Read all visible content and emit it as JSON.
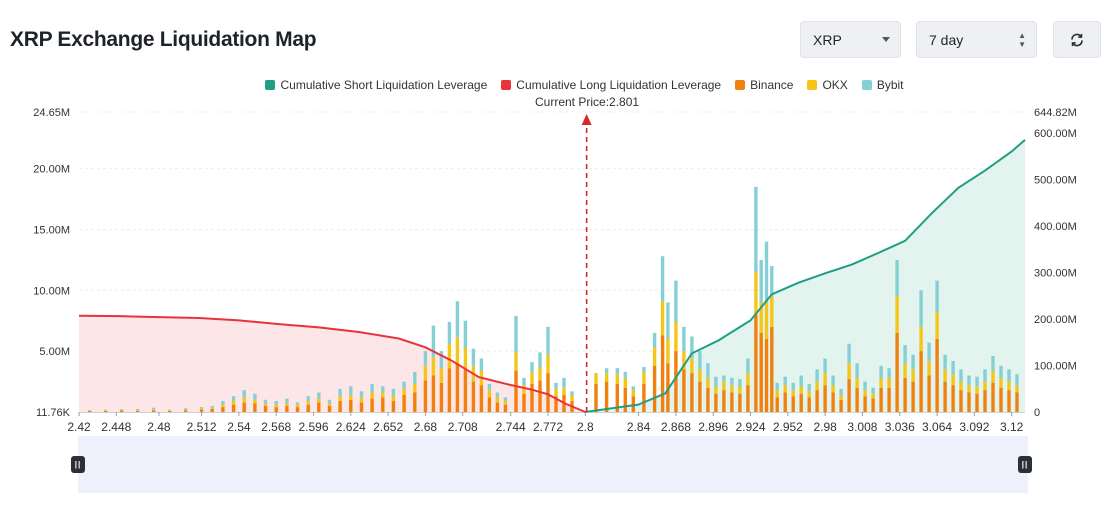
{
  "title": "XRP Exchange Liquidation Map",
  "controls": {
    "asset": "XRP",
    "period": "7 day",
    "refresh_icon": "refresh-icon"
  },
  "legend": [
    {
      "label": "Cumulative Short Liquidation Leverage",
      "color": "#1f9d85"
    },
    {
      "label": "Cumulative Long Liquidation Leverage",
      "color": "#e8323c"
    },
    {
      "label": "Binance",
      "color": "#f0810f"
    },
    {
      "label": "OKX",
      "color": "#f5c518"
    },
    {
      "label": "Bybit",
      "color": "#84d0d4"
    }
  ],
  "current_price_label": "Current Price:2.801",
  "chart_data": {
    "type": "bar",
    "current_price": 2.801,
    "x_ticks": [
      "2.42",
      "2.448",
      "2.48",
      "2.512",
      "2.54",
      "2.568",
      "2.596",
      "2.624",
      "2.652",
      "2.68",
      "2.708",
      "2.744",
      "2.772",
      "2.8",
      "2.84",
      "2.868",
      "2.896",
      "2.924",
      "2.952",
      "2.98",
      "3.008",
      "3.036",
      "3.064",
      "3.092",
      "3.12"
    ],
    "y_left_ticks": [
      "24.65M",
      "20.00M",
      "15.00M",
      "10.00M",
      "5.00M",
      "11.76K"
    ],
    "y_right_ticks": [
      "644.82M",
      "600.00M",
      "500.00M",
      "400.00M",
      "300.00M",
      "200.00M",
      "100.00M",
      "0"
    ],
    "ylim_left": [
      0,
      24650000
    ],
    "ylim_right": [
      0,
      644820000
    ],
    "xlim": [
      2.42,
      3.13
    ],
    "colors": {
      "binance": "#f0810f",
      "okx": "#f5c518",
      "bybit": "#84d0d4",
      "short_line": "#1f9d85",
      "short_fill": "#e3f4ef",
      "long_line": "#e8323c",
      "long_fill": "#fde6e8",
      "current_price": "#d62a2a"
    },
    "long_cumulative": {
      "x": [
        2.42,
        2.45,
        2.48,
        2.51,
        2.54,
        2.57,
        2.6,
        2.63,
        2.66,
        2.68,
        2.7,
        2.72,
        2.744,
        2.76,
        2.772,
        2.785,
        2.8
      ],
      "y": [
        207000000,
        206000000,
        204000000,
        202000000,
        197000000,
        189000000,
        182000000,
        172000000,
        158000000,
        139000000,
        110000000,
        75000000,
        58000000,
        48000000,
        38000000,
        18000000,
        0
      ]
    },
    "short_cumulative": {
      "x": [
        2.8,
        2.84,
        2.86,
        2.88,
        2.9,
        2.924,
        2.94,
        2.96,
        2.98,
        3.0,
        3.02,
        3.04,
        3.06,
        3.08,
        3.1,
        3.12,
        3.13
      ],
      "y": [
        0,
        16000000,
        40000000,
        126000000,
        154000000,
        197000000,
        253000000,
        278000000,
        298000000,
        317000000,
        342000000,
        368000000,
        427000000,
        482000000,
        519000000,
        560000000,
        585000000
      ]
    },
    "series": [
      {
        "name": "Binance"
      },
      {
        "name": "OKX"
      },
      {
        "name": "Bybit"
      }
    ],
    "bars": [
      {
        "x": 2.428,
        "binance": 0.08,
        "okx": 0.04,
        "bybit": 0.03
      },
      {
        "x": 2.44,
        "binance": 0.1,
        "okx": 0.05,
        "bybit": 0.05
      },
      {
        "x": 2.452,
        "binance": 0.12,
        "okx": 0.06,
        "bybit": 0.05
      },
      {
        "x": 2.464,
        "binance": 0.1,
        "okx": 0.05,
        "bybit": 0.1
      },
      {
        "x": 2.476,
        "binance": 0.15,
        "okx": 0.05,
        "bybit": 0.15
      },
      {
        "x": 2.488,
        "binance": 0.1,
        "okx": 0.05,
        "bybit": 0.05
      },
      {
        "x": 2.5,
        "binance": 0.15,
        "okx": 0.05,
        "bybit": 0.1
      },
      {
        "x": 2.512,
        "binance": 0.2,
        "okx": 0.1,
        "bybit": 0.1
      },
      {
        "x": 2.52,
        "binance": 0.25,
        "okx": 0.1,
        "bybit": 0.15
      },
      {
        "x": 2.528,
        "binance": 0.4,
        "okx": 0.2,
        "bybit": 0.3
      },
      {
        "x": 2.536,
        "binance": 0.6,
        "okx": 0.3,
        "bybit": 0.4
      },
      {
        "x": 2.544,
        "binance": 0.8,
        "okx": 0.4,
        "bybit": 0.6
      },
      {
        "x": 2.552,
        "binance": 0.7,
        "okx": 0.3,
        "bybit": 0.5
      },
      {
        "x": 2.56,
        "binance": 0.5,
        "okx": 0.2,
        "bybit": 0.3
      },
      {
        "x": 2.568,
        "binance": 0.4,
        "okx": 0.2,
        "bybit": 0.3
      },
      {
        "x": 2.576,
        "binance": 0.5,
        "okx": 0.2,
        "bybit": 0.4
      },
      {
        "x": 2.584,
        "binance": 0.4,
        "okx": 0.2,
        "bybit": 0.2
      },
      {
        "x": 2.592,
        "binance": 0.6,
        "okx": 0.3,
        "bybit": 0.4
      },
      {
        "x": 2.6,
        "binance": 0.8,
        "okx": 0.3,
        "bybit": 0.5
      },
      {
        "x": 2.608,
        "binance": 0.5,
        "okx": 0.2,
        "bybit": 0.3
      },
      {
        "x": 2.616,
        "binance": 0.9,
        "okx": 0.4,
        "bybit": 0.6
      },
      {
        "x": 2.624,
        "binance": 1.0,
        "okx": 0.4,
        "bybit": 0.7
      },
      {
        "x": 2.632,
        "binance": 0.8,
        "okx": 0.4,
        "bybit": 0.5
      },
      {
        "x": 2.64,
        "binance": 1.1,
        "okx": 0.5,
        "bybit": 0.7
      },
      {
        "x": 2.648,
        "binance": 1.2,
        "okx": 0.4,
        "bybit": 0.5
      },
      {
        "x": 2.656,
        "binance": 0.9,
        "okx": 0.4,
        "bybit": 0.6
      },
      {
        "x": 2.664,
        "binance": 1.4,
        "okx": 0.5,
        "bybit": 0.6
      },
      {
        "x": 2.672,
        "binance": 1.6,
        "okx": 0.7,
        "bybit": 1.0
      },
      {
        "x": 2.68,
        "binance": 2.6,
        "okx": 1.2,
        "bybit": 1.2
      },
      {
        "x": 2.686,
        "binance": 3.0,
        "okx": 1.5,
        "bybit": 2.6
      },
      {
        "x": 2.692,
        "binance": 2.4,
        "okx": 1.2,
        "bybit": 1.4
      },
      {
        "x": 2.698,
        "binance": 3.6,
        "okx": 2.0,
        "bybit": 1.8
      },
      {
        "x": 2.704,
        "binance": 4.0,
        "okx": 2.1,
        "bybit": 3.0
      },
      {
        "x": 2.71,
        "binance": 3.5,
        "okx": 1.8,
        "bybit": 2.2
      },
      {
        "x": 2.716,
        "binance": 2.5,
        "okx": 1.3,
        "bybit": 1.4
      },
      {
        "x": 2.722,
        "binance": 2.2,
        "okx": 1.2,
        "bybit": 1.0
      },
      {
        "x": 2.728,
        "binance": 1.2,
        "okx": 0.6,
        "bybit": 0.5
      },
      {
        "x": 2.734,
        "binance": 0.8,
        "okx": 0.4,
        "bybit": 0.4
      },
      {
        "x": 2.74,
        "binance": 0.6,
        "okx": 0.3,
        "bybit": 0.3
      },
      {
        "x": 2.748,
        "binance": 3.4,
        "okx": 1.5,
        "bybit": 3.0
      },
      {
        "x": 2.754,
        "binance": 1.5,
        "okx": 0.7,
        "bybit": 0.6
      },
      {
        "x": 2.76,
        "binance": 2.3,
        "okx": 1.0,
        "bybit": 0.8
      },
      {
        "x": 2.766,
        "binance": 2.6,
        "okx": 1.1,
        "bybit": 1.2
      },
      {
        "x": 2.772,
        "binance": 3.2,
        "okx": 1.5,
        "bybit": 2.3
      },
      {
        "x": 2.778,
        "binance": 1.3,
        "okx": 0.6,
        "bybit": 0.5
      },
      {
        "x": 2.784,
        "binance": 1.4,
        "okx": 0.6,
        "bybit": 0.8
      },
      {
        "x": 2.79,
        "binance": 0.9,
        "okx": 0.5,
        "bybit": 0.3
      },
      {
        "x": 2.808,
        "binance": 2.3,
        "okx": 0.9,
        "bybit": 0.0
      },
      {
        "x": 2.816,
        "binance": 2.5,
        "okx": 0.7,
        "bybit": 0.4
      },
      {
        "x": 2.824,
        "binance": 2.3,
        "okx": 0.8,
        "bybit": 0.5
      },
      {
        "x": 2.83,
        "binance": 2.0,
        "okx": 0.8,
        "bybit": 0.5
      },
      {
        "x": 2.836,
        "binance": 1.3,
        "okx": 0.5,
        "bybit": 0.3
      },
      {
        "x": 2.844,
        "binance": 2.3,
        "okx": 1.0,
        "bybit": 0.4
      },
      {
        "x": 2.852,
        "binance": 3.8,
        "okx": 1.5,
        "bybit": 1.2
      },
      {
        "x": 2.858,
        "binance": 6.3,
        "okx": 2.8,
        "bybit": 3.7
      },
      {
        "x": 2.862,
        "binance": 4.0,
        "okx": 2.0,
        "bybit": 3.0
      },
      {
        "x": 2.868,
        "binance": 5.0,
        "okx": 2.4,
        "bybit": 3.4
      },
      {
        "x": 2.874,
        "binance": 3.5,
        "okx": 1.5,
        "bybit": 2.0
      },
      {
        "x": 2.88,
        "binance": 3.2,
        "okx": 1.2,
        "bybit": 1.8
      },
      {
        "x": 2.886,
        "binance": 2.5,
        "okx": 1.0,
        "bybit": 1.5
      },
      {
        "x": 2.892,
        "binance": 2.0,
        "okx": 0.8,
        "bybit": 1.2
      },
      {
        "x": 2.898,
        "binance": 1.5,
        "okx": 0.6,
        "bybit": 0.8
      },
      {
        "x": 2.904,
        "binance": 1.8,
        "okx": 0.7,
        "bybit": 0.5
      },
      {
        "x": 2.91,
        "binance": 1.6,
        "okx": 0.6,
        "bybit": 0.6
      },
      {
        "x": 2.916,
        "binance": 1.5,
        "okx": 0.6,
        "bybit": 0.6
      },
      {
        "x": 2.922,
        "binance": 2.2,
        "okx": 1.0,
        "bybit": 1.2
      },
      {
        "x": 2.928,
        "binance": 8.0,
        "okx": 3.5,
        "bybit": 7.0
      },
      {
        "x": 2.932,
        "binance": 6.5,
        "okx": 2.5,
        "bybit": 3.5
      },
      {
        "x": 2.936,
        "binance": 6.0,
        "okx": 3.0,
        "bybit": 5.0
      },
      {
        "x": 2.94,
        "binance": 7.0,
        "okx": 2.5,
        "bybit": 2.5
      },
      {
        "x": 2.944,
        "binance": 1.2,
        "okx": 0.6,
        "bybit": 0.6
      },
      {
        "x": 2.95,
        "binance": 1.6,
        "okx": 0.6,
        "bybit": 0.7
      },
      {
        "x": 2.956,
        "binance": 1.3,
        "okx": 0.5,
        "bybit": 0.6
      },
      {
        "x": 2.962,
        "binance": 1.5,
        "okx": 0.6,
        "bybit": 0.9
      },
      {
        "x": 2.968,
        "binance": 1.2,
        "okx": 0.5,
        "bybit": 0.6
      },
      {
        "x": 2.974,
        "binance": 1.8,
        "okx": 0.7,
        "bybit": 1.0
      },
      {
        "x": 2.98,
        "binance": 2.2,
        "okx": 1.0,
        "bybit": 1.2
      },
      {
        "x": 2.986,
        "binance": 1.6,
        "okx": 0.6,
        "bybit": 0.8
      },
      {
        "x": 2.992,
        "binance": 1.0,
        "okx": 0.4,
        "bybit": 0.5
      },
      {
        "x": 2.998,
        "binance": 2.7,
        "okx": 1.3,
        "bybit": 1.6
      },
      {
        "x": 3.004,
        "binance": 2.0,
        "okx": 0.8,
        "bybit": 1.2
      },
      {
        "x": 3.01,
        "binance": 1.3,
        "okx": 0.5,
        "bybit": 0.7
      },
      {
        "x": 3.016,
        "binance": 1.1,
        "okx": 0.4,
        "bybit": 0.5
      },
      {
        "x": 3.022,
        "binance": 2.0,
        "okx": 0.8,
        "bybit": 1.0
      },
      {
        "x": 3.028,
        "binance": 2.0,
        "okx": 0.8,
        "bybit": 0.8
      },
      {
        "x": 3.034,
        "binance": 6.5,
        "okx": 3.0,
        "bybit": 3.0
      },
      {
        "x": 3.04,
        "binance": 2.8,
        "okx": 1.2,
        "bybit": 1.5
      },
      {
        "x": 3.046,
        "binance": 2.5,
        "okx": 1.0,
        "bybit": 1.2
      },
      {
        "x": 3.052,
        "binance": 5.0,
        "okx": 2.0,
        "bybit": 3.0
      },
      {
        "x": 3.058,
        "binance": 3.0,
        "okx": 1.2,
        "bybit": 1.5
      },
      {
        "x": 3.064,
        "binance": 6.0,
        "okx": 2.2,
        "bybit": 2.6
      },
      {
        "x": 3.07,
        "binance": 2.5,
        "okx": 1.0,
        "bybit": 1.2
      },
      {
        "x": 3.076,
        "binance": 2.2,
        "okx": 0.9,
        "bybit": 1.1
      },
      {
        "x": 3.082,
        "binance": 1.8,
        "okx": 0.7,
        "bybit": 1.0
      },
      {
        "x": 3.088,
        "binance": 1.6,
        "okx": 0.6,
        "bybit": 0.8
      },
      {
        "x": 3.094,
        "binance": 1.5,
        "okx": 0.6,
        "bybit": 0.8
      },
      {
        "x": 3.1,
        "binance": 1.8,
        "okx": 0.7,
        "bybit": 1.0
      },
      {
        "x": 3.106,
        "binance": 2.4,
        "okx": 1.0,
        "bybit": 1.2
      },
      {
        "x": 3.112,
        "binance": 2.0,
        "okx": 0.8,
        "bybit": 1.0
      },
      {
        "x": 3.118,
        "binance": 1.8,
        "okx": 0.7,
        "bybit": 1.0
      },
      {
        "x": 3.124,
        "binance": 1.6,
        "okx": 0.6,
        "bybit": 0.9
      }
    ]
  }
}
